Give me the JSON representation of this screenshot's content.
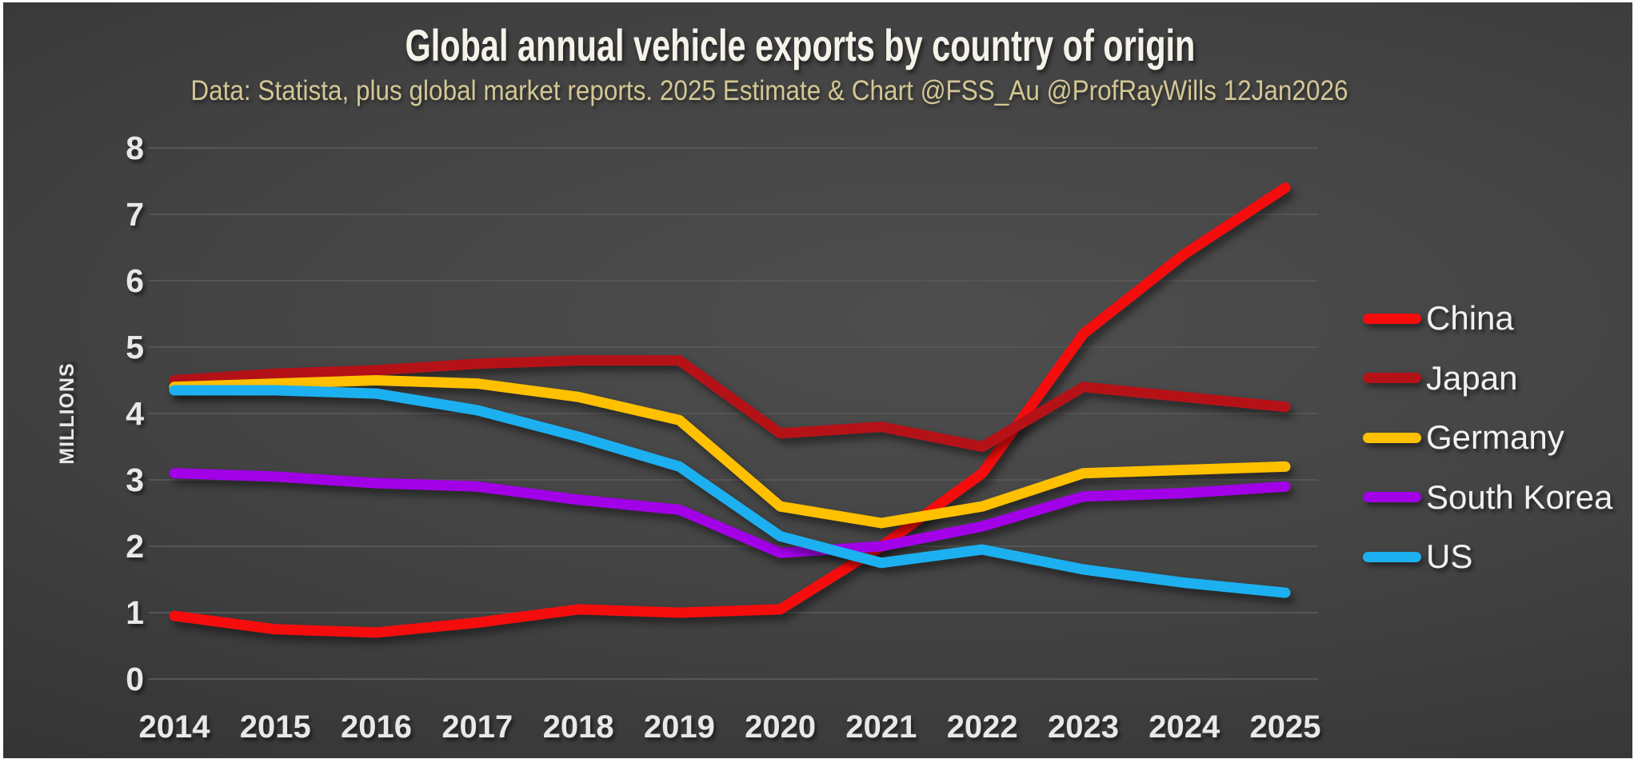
{
  "slide": {
    "title": "Global annual vehicle exports by country of origin",
    "subtitle": "Data: Statista, plus global market reports.  2025 Estimate & Chart @FSS_Au @ProfRayWills 12Jan2026"
  },
  "colors": {
    "background_center": "#4e4e4e",
    "background_edge": "#262626",
    "gridline": "#565656",
    "title_text": "#f5f2ea",
    "subtitle_text": "#d3c795",
    "axis_text": "#e8e8e8",
    "frame": "#ffffff"
  },
  "chart_data": {
    "type": "line",
    "title": "Global annual vehicle exports by country of origin",
    "subtitle": "Data: Statista, plus global market reports.  2025 Estimate & Chart @FSS_Au @ProfRayWills 12Jan2026",
    "xlabel": "",
    "ylabel": "MILLIONS",
    "ylim": [
      0,
      8
    ],
    "yticks": [
      0,
      1,
      2,
      3,
      4,
      5,
      6,
      7,
      8
    ],
    "grid": "horizontal",
    "legend_position": "right",
    "categories": [
      "2014",
      "2015",
      "2016",
      "2017",
      "2018",
      "2019",
      "2020",
      "2021",
      "2022",
      "2023",
      "2024",
      "2025"
    ],
    "series": [
      {
        "name": "China",
        "color": "#f50d0d",
        "values": [
          0.95,
          0.75,
          0.7,
          0.85,
          1.05,
          1.0,
          1.05,
          2.0,
          3.1,
          5.2,
          6.4,
          7.4
        ]
      },
      {
        "name": "Japan",
        "color": "#b51218",
        "values": [
          4.5,
          4.6,
          4.65,
          4.75,
          4.8,
          4.8,
          3.7,
          3.8,
          3.5,
          4.4,
          4.25,
          4.1
        ]
      },
      {
        "name": "Germany",
        "color": "#ffc000",
        "values": [
          4.4,
          4.45,
          4.5,
          4.45,
          4.25,
          3.9,
          2.6,
          2.35,
          2.6,
          3.1,
          3.15,
          3.2
        ]
      },
      {
        "name": "South Korea",
        "color": "#a201e8",
        "values": [
          3.1,
          3.05,
          2.95,
          2.9,
          2.7,
          2.55,
          1.9,
          2.0,
          2.3,
          2.75,
          2.8,
          2.9
        ]
      },
      {
        "name": "US",
        "color": "#1cb0f0",
        "values": [
          4.35,
          4.35,
          4.3,
          4.05,
          3.65,
          3.2,
          2.15,
          1.75,
          1.95,
          1.65,
          1.45,
          1.3
        ]
      }
    ]
  }
}
